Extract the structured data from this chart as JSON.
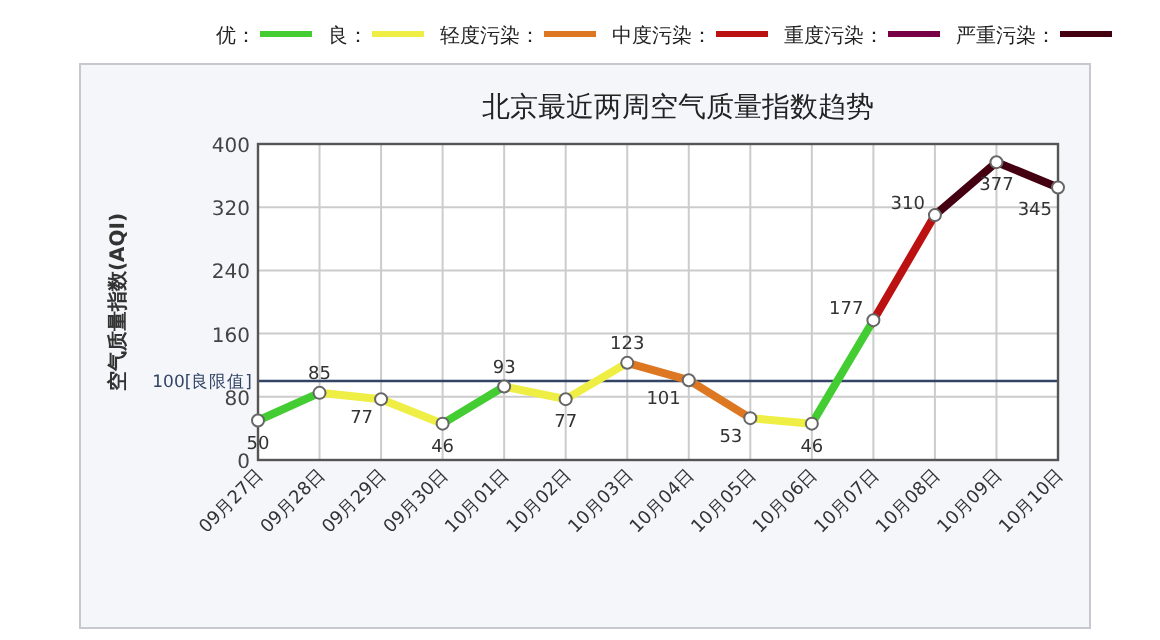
{
  "chart_data": {
    "type": "line",
    "title": "北京最近两周空气质量指数趋势",
    "ylabel": "空气质量指数(AQI)",
    "categories": [
      "09月27日",
      "09月28日",
      "09月29日",
      "09月30日",
      "10月01日",
      "10月02日",
      "10月03日",
      "10月04日",
      "10月05日",
      "10月06日",
      "10月07日",
      "10月08日",
      "10月09日",
      "10月10日"
    ],
    "series": [
      {
        "values": [
          50,
          85,
          77,
          46,
          93,
          77,
          123,
          101,
          53,
          46,
          177,
          310,
          377,
          345
        ],
        "colors": [
          "#44cc33",
          "#44cc33",
          "#eeee44",
          "#eeee44",
          "#44cc33",
          "#eeee44",
          "#eeee44",
          "#dd7722",
          "#dd7722",
          "#eeee44",
          "#44cc33",
          "#bb1111",
          "#440011",
          "#440011"
        ]
      },
      {
        "name": "优：",
        "color": "#44cc33",
        "values": [
          null,
          null,
          null,
          null,
          null,
          null,
          null,
          null,
          null,
          null,
          null,
          null,
          null,
          null
        ]
      },
      {
        "name": "良：",
        "color": "#eeee44",
        "values": [
          null,
          null,
          null,
          null,
          null,
          null,
          null,
          null,
          null,
          null,
          null,
          null,
          null,
          null
        ]
      },
      {
        "name": "轻度污染：",
        "color": "#dd7722",
        "values": [
          null,
          null,
          null,
          null,
          null,
          null,
          null,
          null,
          null,
          null,
          null,
          null,
          null,
          null
        ]
      },
      {
        "name": "中度污染：",
        "color": "#bb1111",
        "values": [
          null,
          null,
          null,
          null,
          null,
          null,
          null,
          null,
          null,
          null,
          null,
          null,
          null,
          null
        ]
      },
      {
        "name": "重度污染：",
        "color": "#770044",
        "values": [
          null,
          null,
          null,
          null,
          null,
          null,
          null,
          null,
          null,
          null,
          null,
          null,
          null,
          null
        ]
      },
      {
        "name": "严重污染：",
        "color": "#440011",
        "values": [
          null,
          null,
          null,
          null,
          null,
          null,
          null,
          null,
          null,
          null,
          null,
          null,
          null,
          null
        ]
      }
    ],
    "ylim": [
      0,
      400
    ],
    "yticks": [
      0,
      80,
      160,
      240,
      320,
      400
    ],
    "ref_lines": [
      {
        "axis": "y",
        "value": 100,
        "label": "100[良限值]",
        "color": "#334466"
      }
    ],
    "grid": true,
    "legend": "top",
    "marker": "circle",
    "line_style": "solid",
    "data_labels": true
  }
}
